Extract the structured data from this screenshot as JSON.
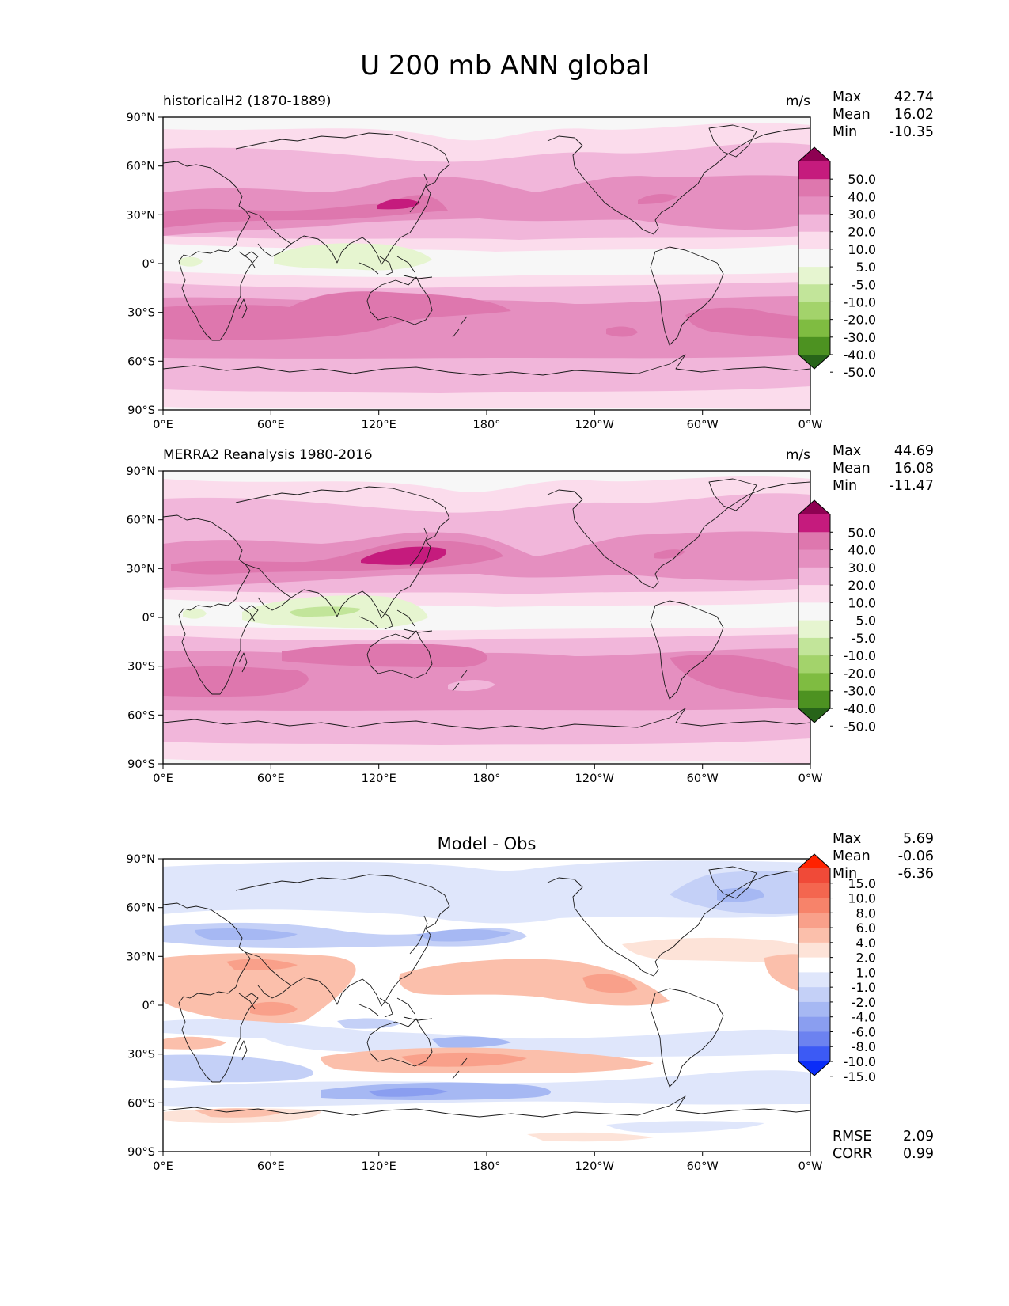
{
  "figure": {
    "title": "U 200 mb ANN global",
    "lon_ticks": [
      "0°E",
      "60°E",
      "120°E",
      "180°",
      "120°W",
      "60°W",
      "0°W"
    ],
    "lat_ticks": [
      "90°N",
      "60°N",
      "30°N",
      "0°",
      "30°S",
      "60°S",
      "90°S"
    ]
  },
  "chart_data": [
    {
      "type": "heatmap",
      "panel": "test",
      "title_left": "historicalH2 (1870-1889)",
      "title_center": "",
      "units": "m/s",
      "stats": [
        {
          "label": "Max",
          "value": "42.74"
        },
        {
          "label": "Mean",
          "value": "16.02"
        },
        {
          "label": "Min",
          "value": "-10.35"
        }
      ],
      "colorbar": {
        "levels": [
          "50.0",
          "40.0",
          "30.0",
          "20.0",
          "10.0",
          "5.0",
          "-5.0",
          "-10.0",
          "-20.0",
          "-30.0",
          "-40.0",
          "-50.0"
        ],
        "colors": [
          "#8e0152",
          "#c51b7d",
          "#de77ae",
          "#e58fc0",
          "#f1b6da",
          "#fbdcec",
          "#f7f7f7",
          "#e6f5d0",
          "#c2e59a",
          "#a3d36b",
          "#7fbc41",
          "#4d9221",
          "#276419"
        ]
      }
    },
    {
      "type": "heatmap",
      "panel": "reference",
      "title_left": "MERRA2 Reanalysis 1980-2016",
      "title_center": "",
      "units": "m/s",
      "stats": [
        {
          "label": "Max",
          "value": "44.69"
        },
        {
          "label": "Mean",
          "value": "16.08"
        },
        {
          "label": "Min",
          "value": "-11.47"
        }
      ],
      "colorbar": {
        "levels": [
          "50.0",
          "40.0",
          "30.0",
          "20.0",
          "10.0",
          "5.0",
          "-5.0",
          "-10.0",
          "-20.0",
          "-30.0",
          "-40.0",
          "-50.0"
        ],
        "colors": [
          "#8e0152",
          "#c51b7d",
          "#de77ae",
          "#e58fc0",
          "#f1b6da",
          "#fbdcec",
          "#f7f7f7",
          "#e6f5d0",
          "#c2e59a",
          "#a3d36b",
          "#7fbc41",
          "#4d9221",
          "#276419"
        ]
      }
    },
    {
      "type": "heatmap",
      "panel": "difference",
      "title_left": "",
      "title_center": "Model - Obs",
      "units": "",
      "stats": [
        {
          "label": "Max",
          "value": "5.69"
        },
        {
          "label": "Mean",
          "value": "-0.06"
        },
        {
          "label": "Min",
          "value": "-6.36"
        }
      ],
      "extra_stats": [
        {
          "label": "RMSE",
          "value": "2.09"
        },
        {
          "label": "CORR",
          "value": "0.99"
        }
      ],
      "colorbar": {
        "levels": [
          "15.0",
          "10.0",
          "8.0",
          "6.0",
          "4.0",
          "2.0",
          "1.0",
          "-1.0",
          "-2.0",
          "-4.0",
          "-6.0",
          "-8.0",
          "-10.0",
          "-15.0"
        ],
        "colors": [
          "#ff2200",
          "#f04a38",
          "#f4664f",
          "#f7836a",
          "#f9a08a",
          "#fbbfab",
          "#fde3d8",
          "#ffffff",
          "#dfe6fb",
          "#c4d0f7",
          "#a6b8f3",
          "#8a9ef0",
          "#6c82f0",
          "#3c5af5",
          "#0b2df8"
        ]
      }
    }
  ]
}
